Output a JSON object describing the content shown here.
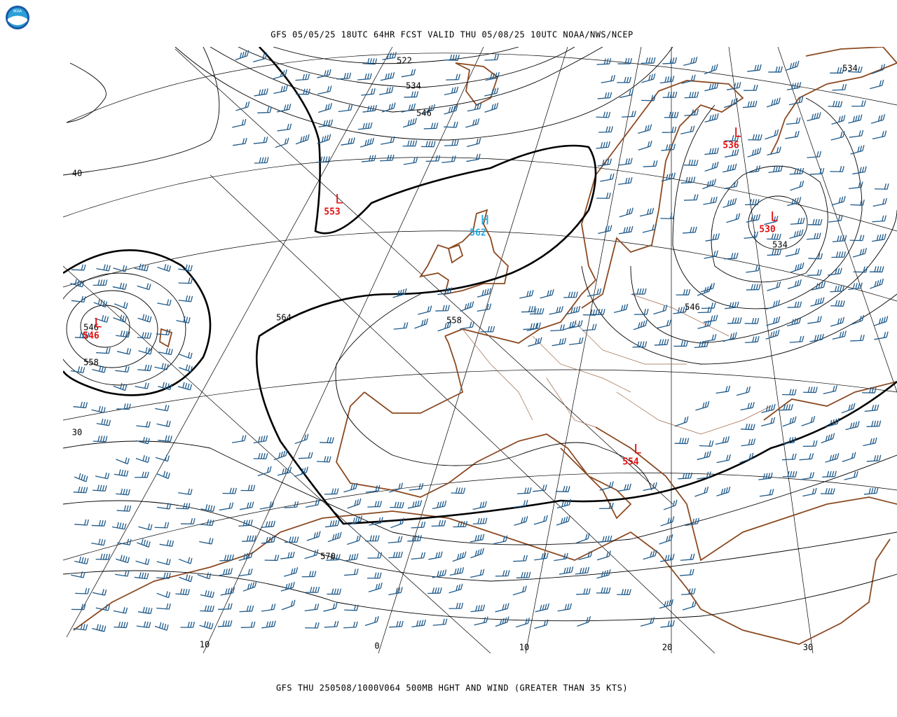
{
  "header": {
    "title": "GFS 05/05/25 18UTC 64HR FCST VALID THU 05/08/25 10UTC NOAA/NWS/NCEP",
    "logo": "NOAA"
  },
  "footer": {
    "caption": "GFS THU 250508/1000V064 500MB HGHT AND WIND (GREATER THAN 35 KTS)"
  },
  "contour_labels": [
    522,
    534,
    546,
    534,
    564,
    558,
    546,
    558,
    570,
    534,
    546
  ],
  "centers": [
    {
      "symbol": "L",
      "value": 553
    },
    {
      "symbol": "H",
      "value": 562
    },
    {
      "symbol": "L",
      "value": 536
    },
    {
      "symbol": "L",
      "value": 530
    },
    {
      "symbol": "L",
      "value": 546
    },
    {
      "symbol": "L",
      "value": 554
    }
  ],
  "latitude_labels": [
    "40",
    "30"
  ],
  "longitude_labels": [
    "10",
    "0",
    "10",
    "20",
    "30"
  ]
}
